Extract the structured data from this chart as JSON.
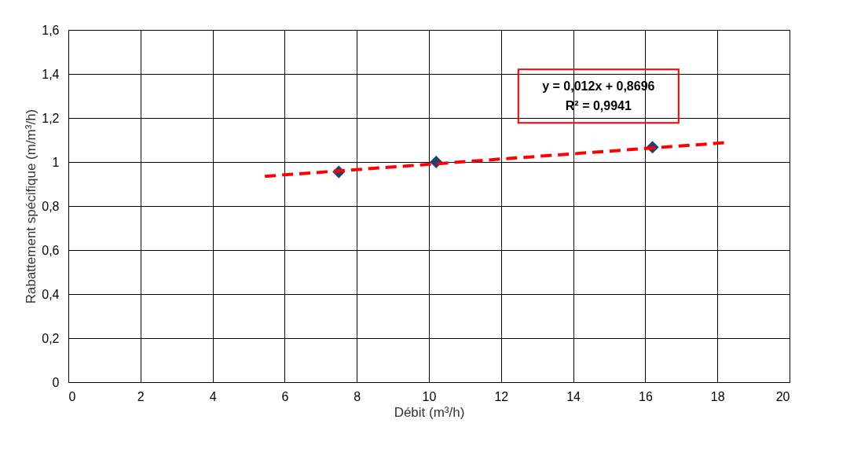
{
  "chart_data": {
    "type": "scatter",
    "xlabel": "Débit (m³/h)",
    "ylabel": "Rabattement spécifique (m/m³/h)",
    "series": [
      {
        "color": "#243f73",
        "marker": "diamond",
        "x": [
          7.5,
          10.2,
          16.2
        ],
        "values": [
          0.955,
          1.0,
          1.067
        ]
      },
      {
        "type": "line",
        "color": "#ff0000",
        "line_style": "dashed",
        "marker": "none",
        "x": [
          5.45,
          18.24
        ],
        "values": [
          0.935,
          1.088
        ]
      }
    ],
    "annotations": [
      "y = 0,012x + 0,8696",
      "R² = 0,9941"
    ],
    "xlim": [
      0,
      20
    ],
    "xticks": [
      0,
      2,
      4,
      6,
      8,
      10,
      12,
      14,
      16,
      18,
      20
    ],
    "ylim": [
      0,
      1.6
    ],
    "yticks": [
      0,
      {
        "value": 0.2,
        "label": "0,2"
      },
      {
        "value": 0.4,
        "label": "0,4"
      },
      {
        "value": 0.6,
        "label": "0,6"
      },
      {
        "value": 0.8,
        "label": "0,8"
      },
      1,
      {
        "value": 1.2,
        "label": "1,2"
      },
      {
        "value": 1.4,
        "label": "1,4"
      },
      {
        "value": 1.6,
        "label": "1,6"
      }
    ],
    "grid": true
  }
}
